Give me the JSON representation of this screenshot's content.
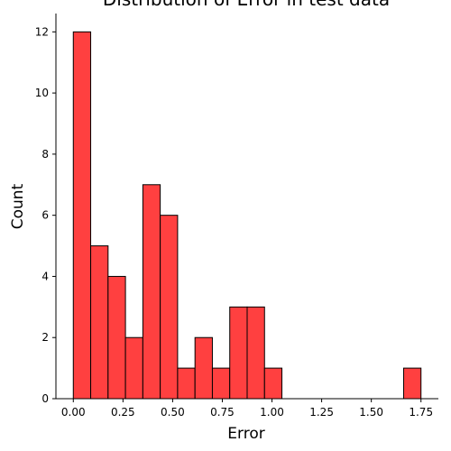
{
  "chart_data": {
    "type": "bar",
    "title": "Distribution of Error in test data",
    "xlabel": "Error",
    "ylabel": "Count",
    "bar_color": "#ff4040",
    "edge_color": "#000000",
    "bin_width": 0.0875,
    "bins": [
      {
        "left": 0.0,
        "count": 12
      },
      {
        "left": 0.0875,
        "count": 5
      },
      {
        "left": 0.175,
        "count": 4
      },
      {
        "left": 0.2625,
        "count": 2
      },
      {
        "left": 0.35,
        "count": 7
      },
      {
        "left": 0.4375,
        "count": 6
      },
      {
        "left": 0.525,
        "count": 1
      },
      {
        "left": 0.6125,
        "count": 2
      },
      {
        "left": 0.7,
        "count": 1
      },
      {
        "left": 0.7875,
        "count": 3
      },
      {
        "left": 0.875,
        "count": 3
      },
      {
        "left": 0.9625,
        "count": 1
      },
      {
        "left": 1.05,
        "count": 0
      },
      {
        "left": 1.1375,
        "count": 0
      },
      {
        "left": 1.225,
        "count": 0
      },
      {
        "left": 1.3125,
        "count": 0
      },
      {
        "left": 1.4,
        "count": 0
      },
      {
        "left": 1.4875,
        "count": 0
      },
      {
        "left": 1.575,
        "count": 0
      },
      {
        "left": 1.6625,
        "count": 1
      }
    ],
    "xlim": [
      -0.0875,
      1.8375
    ],
    "ylim": [
      0,
      12.6
    ],
    "xticks": [
      0.0,
      0.25,
      0.5,
      0.75,
      1.0,
      1.25,
      1.5,
      1.75
    ],
    "xtick_labels": [
      "0.00",
      "0.25",
      "0.50",
      "0.75",
      "1.00",
      "1.25",
      "1.50",
      "1.75"
    ],
    "yticks": [
      0,
      2,
      4,
      6,
      8,
      10,
      12
    ],
    "ytick_labels": [
      "0",
      "2",
      "4",
      "6",
      "8",
      "10",
      "12"
    ],
    "grid": false,
    "legend": "none"
  }
}
